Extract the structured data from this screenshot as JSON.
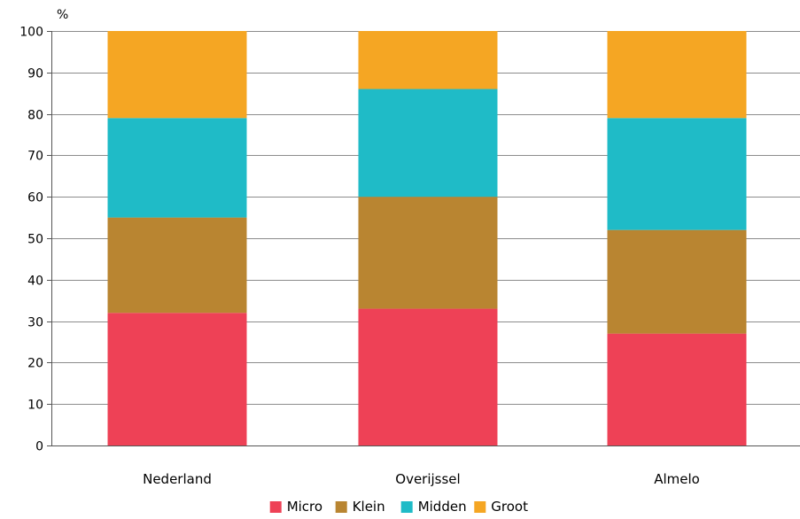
{
  "chart_data": {
    "type": "bar",
    "stacked": true,
    "unit_label": "%",
    "categories": [
      "Nederland",
      "Overijssel",
      "Almelo"
    ],
    "series": [
      {
        "name": "Micro",
        "color": "#ee4156",
        "values": [
          32,
          33,
          27
        ]
      },
      {
        "name": "Klein",
        "color": "#b98531",
        "values": [
          23,
          27,
          25
        ]
      },
      {
        "name": "Midden",
        "color": "#1fbbc7",
        "values": [
          24,
          26,
          27
        ]
      },
      {
        "name": "Groot",
        "color": "#f5a623",
        "values": [
          21,
          14,
          21
        ]
      }
    ],
    "ylim": [
      0,
      100
    ],
    "yticks": [
      0,
      10,
      20,
      30,
      40,
      50,
      60,
      70,
      80,
      90,
      100
    ],
    "grid": true,
    "legend_position": "bottom"
  }
}
